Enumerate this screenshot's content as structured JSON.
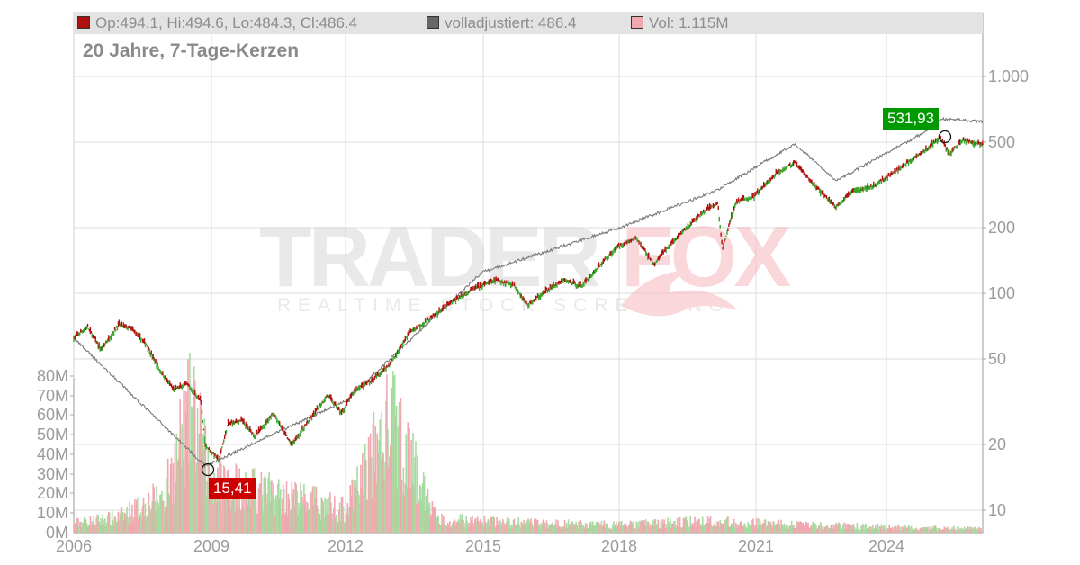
{
  "legend": {
    "ohlc": {
      "label": "Op:494.1, Hi:494.6, Lo:484.3, Cl:486.4",
      "color": "#b01010"
    },
    "adjusted": {
      "label": "volladjustiert: 486.4",
      "color": "#666666"
    },
    "volume": {
      "label": "Vol: 1.115M",
      "color": "#f0a8b0"
    }
  },
  "subtitle": "20 Jahre, 7-Tage-Kerzen",
  "watermark": {
    "brand_left": "TRADER",
    "brand_right": "FOX",
    "tagline": "REALTIME STOCK SCREENING"
  },
  "annotations": {
    "low": {
      "label": "15,41",
      "color": "#cc0000"
    },
    "high": {
      "label": "531,93",
      "color": "#009900"
    }
  },
  "colors": {
    "up": "#3aa52a",
    "down": "#b01010",
    "adjusted_line": "#7a7a7a",
    "vol_up": "#a8dba0",
    "vol_down": "#f0a8b0",
    "grid": "#dddddd"
  },
  "chart_data": {
    "type": "candlestick",
    "title": "20 Jahre, 7-Tage-Kerzen",
    "xlabel": "",
    "ylabel": "",
    "y_scale": "log",
    "ylim": [
      8,
      1300
    ],
    "x_ticks": [
      "2006",
      "2009",
      "2012",
      "2015",
      "2018",
      "2021",
      "2024"
    ],
    "y_ticks": [
      "1.000",
      "500",
      "200",
      "100",
      "50",
      "20",
      "10"
    ],
    "y_tick_values": [
      1000,
      500,
      200,
      100,
      50,
      20,
      10
    ],
    "volume_ticks": [
      "80M",
      "70M",
      "60M",
      "50M",
      "40M",
      "30M",
      "20M",
      "10M",
      "0M"
    ],
    "volume_tick_values": [
      80,
      70,
      60,
      50,
      40,
      30,
      20,
      10,
      0
    ],
    "grid": true,
    "legend_position": "top",
    "last": {
      "open": 494.1,
      "high": 494.6,
      "low": 484.3,
      "close": 486.4,
      "adjusted": 486.4,
      "volume": "1.115M"
    },
    "min_annotation": {
      "value": 15.41,
      "date_approx": 2008.9
    },
    "max_annotation": {
      "value": 531.93,
      "date_approx": 2025.1
    },
    "series": [
      {
        "name": "Close (approx.)",
        "x": [
          2006.0,
          2006.3,
          2006.6,
          2007.0,
          2007.3,
          2007.6,
          2007.9,
          2008.2,
          2008.5,
          2008.8,
          2008.9,
          2009.2,
          2009.4,
          2009.7,
          2010.0,
          2010.4,
          2010.8,
          2011.2,
          2011.6,
          2011.9,
          2012.2,
          2012.6,
          2013.0,
          2013.4,
          2013.8,
          2014.3,
          2014.8,
          2015.3,
          2015.7,
          2016.0,
          2016.4,
          2016.8,
          2017.2,
          2017.6,
          2018.0,
          2018.4,
          2018.8,
          2019.0,
          2019.5,
          2019.9,
          2020.2,
          2020.3,
          2020.6,
          2021.0,
          2021.5,
          2021.9,
          2022.3,
          2022.8,
          2023.2,
          2023.6,
          2023.9,
          2024.3,
          2024.8,
          2025.1,
          2025.3,
          2025.6,
          2026.0
        ],
        "values": [
          62,
          70,
          55,
          72,
          68,
          58,
          44,
          36,
          38,
          32,
          20,
          17,
          25,
          26,
          22,
          28,
          20,
          26,
          34,
          28,
          36,
          40,
          48,
          66,
          75,
          90,
          105,
          115,
          110,
          88,
          102,
          115,
          108,
          135,
          165,
          180,
          135,
          155,
          200,
          240,
          260,
          160,
          265,
          280,
          360,
          400,
          320,
          250,
          300,
          310,
          340,
          390,
          460,
          525,
          440,
          510,
          486
        ]
      },
      {
        "name": "volladjustiert (approx.)",
        "x": [
          2006.0,
          2008.9,
          2012.0,
          2015.0,
          2018.0,
          2020.2,
          2021.9,
          2022.8,
          2024.8,
          2025.1,
          2026.0
        ],
        "values": [
          62,
          16,
          32,
          125,
          200,
          300,
          490,
          330,
          560,
          640,
          620
        ]
      }
    ],
    "volume_series": {
      "name": "Volume (M, approx.)",
      "x": [
        2006,
        2007,
        2008,
        2008.6,
        2009,
        2010,
        2011,
        2012,
        2013,
        2014,
        2016,
        2018,
        2020,
        2022,
        2024,
        2026
      ],
      "values": [
        5,
        8,
        20,
        65,
        30,
        22,
        18,
        12,
        60,
        7,
        5,
        4,
        6,
        4,
        3,
        2
      ]
    }
  }
}
